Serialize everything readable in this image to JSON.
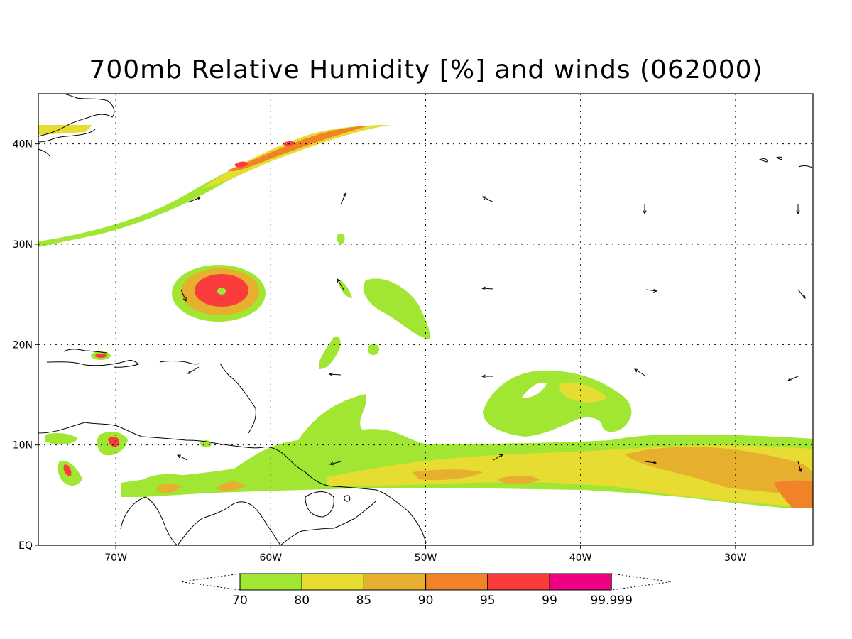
{
  "title": "700mb Relative Humidity [%] and winds (062000)",
  "map": {
    "lon_range": [
      -75,
      -25
    ],
    "lat_range": [
      0,
      45
    ],
    "lat_labels": [
      "EQ",
      "10N",
      "20N",
      "30N",
      "40N"
    ],
    "lon_labels": [
      "70W",
      "60W",
      "50W",
      "40W",
      "30W"
    ]
  },
  "colorbar": {
    "levels": [
      "70",
      "80",
      "85",
      "90",
      "95",
      "99",
      "99.999"
    ],
    "colors": [
      "#a0e632",
      "#e6dc32",
      "#e6af2d",
      "#f08228",
      "#fa3c3c",
      "#f00082"
    ]
  }
}
